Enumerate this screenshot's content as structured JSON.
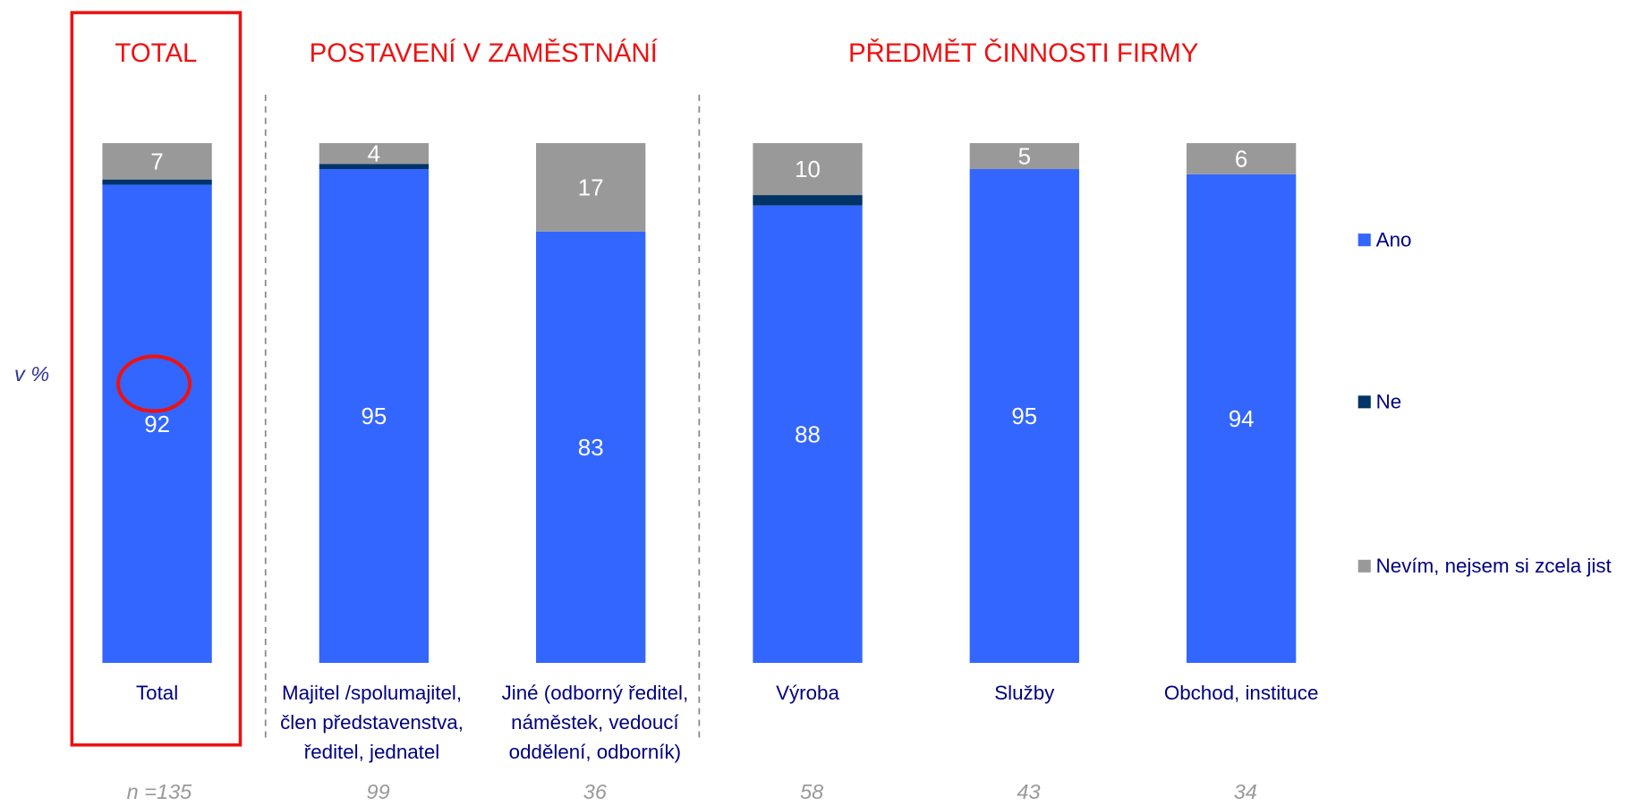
{
  "chart_data": {
    "type": "stacked-bar",
    "groups": [
      "TOTAL",
      "POSTAVENÍ V ZAMĚSTNÁNÍ",
      "PŘEDMĚT ČINNOSTI FIRMY"
    ],
    "y_label": "v %",
    "categories": [
      [
        "Total"
      ],
      [
        "Majitel /spolumajitel,",
        "člen představenstva,",
        "ředitel, jednatel"
      ],
      [
        "Jiné (odborný ředitel,",
        "náměstek, vedoucí",
        "oddělení, odborník)"
      ],
      [
        "Výroba"
      ],
      [
        "Služby"
      ],
      [
        "Obchod, instituce"
      ]
    ],
    "sample_sizes": [
      "n =135",
      "99",
      "36",
      "58",
      "43",
      "34"
    ],
    "series": [
      {
        "name": "Ano",
        "color": "#3366ff",
        "values": [
          92,
          95,
          83,
          88,
          95,
          94
        ]
      },
      {
        "name": "Ne",
        "color": "#003366",
        "values": [
          1,
          1,
          null,
          2,
          null,
          null
        ]
      },
      {
        "name": "Nevím, nejsem si zcela jist",
        "color": "#999999",
        "values": [
          7,
          4,
          17,
          10,
          5,
          6
        ]
      }
    ],
    "ylim": [
      0,
      100
    ],
    "highlight_color": "#ee1111"
  }
}
